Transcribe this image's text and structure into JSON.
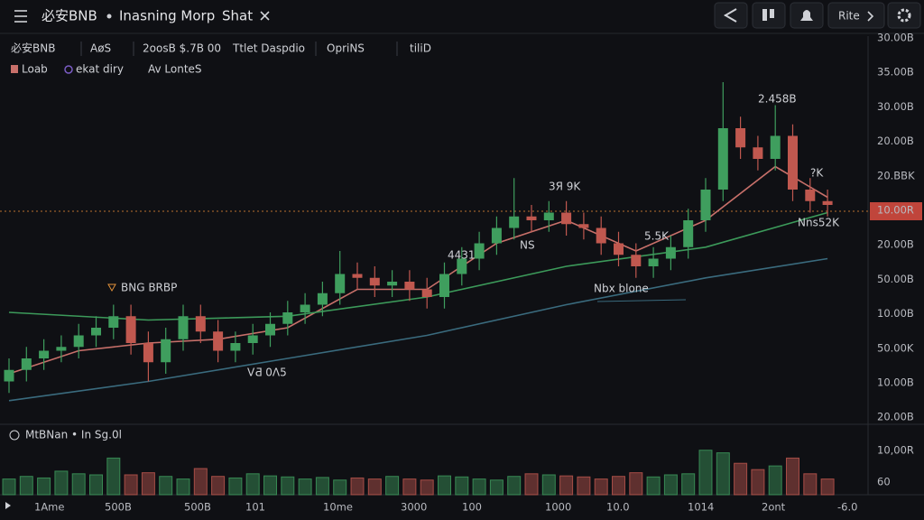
{
  "header": {
    "title": "必安BNB",
    "tabs": [
      "Inasning Morp",
      "Shat"
    ],
    "button": "Rite"
  },
  "info_bar": [
    "必安BNB",
    "AøS",
    "2oosB $.7B 00",
    "Ttlet Daspdio",
    "OpriNS",
    "tiliD"
  ],
  "price_labels": [
    "30.00B",
    "35.00B",
    "30.00B",
    "20.00B",
    "20.BBK",
    "10.00R",
    "20.00B",
    "50.00B",
    "10.00B",
    "50.00K",
    "10.00B",
    "20.00B"
  ],
  "volume_title": "MtBNan • In  Sg.0l",
  "volume_labels": [
    "10,00R",
    "60"
  ],
  "time_labels": [
    "1Ame",
    "500B",
    "500B",
    "101",
    "10me",
    "3000",
    "100",
    "1000",
    "10.0",
    "1014",
    "2ont",
    "-6.0"
  ],
  "annotations": [
    "2.458B",
    "3Я 9K",
    "?K",
    "4431",
    "NS",
    "5.5K",
    "Nns52K",
    "Nbx blone",
    "BNG BRBP",
    "VƋ 0Λ5"
  ],
  "chart_data": {
    "type": "candlestick",
    "up_color": "#3f9e5e",
    "down_color": "#c0584f",
    "ylim": [
      0,
      100
    ],
    "open": [
      10,
      13,
      16,
      18,
      19,
      22,
      24,
      27,
      20,
      15,
      21,
      27,
      23,
      18,
      20,
      22,
      25,
      28,
      30,
      33,
      38,
      37,
      35,
      36,
      34,
      32,
      38,
      42,
      46,
      50,
      53,
      52,
      54,
      51,
      50,
      46,
      43,
      40,
      42,
      45,
      52,
      60,
      76,
      71,
      68,
      74,
      60,
      57
    ],
    "high": [
      16,
      19,
      21,
      22,
      25,
      27,
      30,
      30,
      23,
      24,
      30,
      30,
      26,
      23,
      25,
      28,
      31,
      33,
      36,
      44,
      41,
      40,
      39,
      39,
      37,
      41,
      45,
      49,
      53,
      63,
      56,
      57,
      57,
      54,
      53,
      49,
      46,
      45,
      48,
      55,
      63,
      88,
      79,
      74,
      82,
      77,
      63,
      60
    ],
    "low": [
      7,
      10,
      13,
      15,
      16,
      19,
      21,
      17,
      10,
      12,
      18,
      20,
      15,
      15,
      17,
      19,
      22,
      25,
      27,
      30,
      34,
      32,
      32,
      31,
      29,
      29,
      35,
      39,
      43,
      47,
      49,
      49,
      48,
      47,
      43,
      40,
      37,
      37,
      39,
      42,
      49,
      57,
      68,
      65,
      65,
      57,
      54,
      53
    ],
    "close": [
      13,
      16,
      18,
      19,
      22,
      24,
      27,
      20,
      15,
      21,
      27,
      23,
      18,
      20,
      22,
      25,
      28,
      30,
      33,
      38,
      37,
      35,
      36,
      34,
      32,
      38,
      42,
      46,
      50,
      53,
      52,
      54,
      51,
      50,
      46,
      43,
      40,
      42,
      45,
      52,
      60,
      76,
      71,
      68,
      74,
      60,
      57,
      56
    ],
    "series": [
      {
        "name": "Loab",
        "color": "#c8706a",
        "x": [
          0,
          4,
          8,
          12,
          16,
          20,
          24,
          28,
          32,
          36,
          40,
          44,
          47
        ],
        "values": [
          12,
          18,
          20,
          21,
          24,
          34,
          34,
          46,
          52,
          44,
          52,
          66,
          58
        ]
      },
      {
        "name": "ekat diry",
        "color": "#3a6b7e",
        "x": [
          0,
          8,
          16,
          24,
          32,
          40,
          47
        ],
        "values": [
          5,
          10,
          16,
          22,
          30,
          37,
          42
        ]
      },
      {
        "name": "Av LonteS",
        "color": "#3c9a5a",
        "x": [
          0,
          8,
          16,
          24,
          32,
          40,
          47
        ],
        "values": [
          28,
          26,
          27,
          32,
          40,
          45,
          54
        ]
      }
    ],
    "volume": {
      "ylim": [
        0,
        100
      ],
      "values": [
        30,
        35,
        32,
        45,
        40,
        38,
        70,
        38,
        42,
        35,
        30,
        50,
        35,
        32,
        40,
        36,
        34,
        30,
        33,
        28,
        32,
        30,
        35,
        30,
        28,
        36,
        34,
        30,
        28,
        35,
        40,
        38,
        36,
        34,
        30,
        35,
        42,
        34,
        38,
        40,
        85,
        80,
        60,
        48,
        55,
        70,
        40,
        30
      ]
    }
  }
}
